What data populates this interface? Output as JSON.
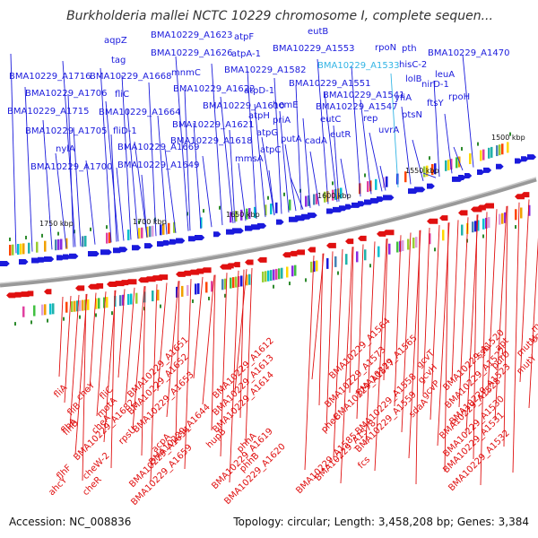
{
  "title": "Burkholderia mallei NCTC 10229 chromosome I, complete sequen...",
  "footer": {
    "accession": "Accession: NC_008836",
    "summary": "Topology: circular; Length: 3,458,208 bp; Genes: 3,384"
  },
  "colors": {
    "forward": "#1a1adc",
    "reverse": "#e01010",
    "highlight": "#33b5e5",
    "backbone": "#888888"
  },
  "ticks": [
    "1750 kbp",
    "1700 kbp",
    "1650 kbp",
    "1600 kbp",
    "1550 kbp",
    "1500 kbp"
  ],
  "forward_labels": [
    "aqpZ",
    "tag",
    "BMA10229_A1623",
    "BMA10229_A1626",
    "atpF",
    "atpA-1",
    "eutB",
    "BMA10229_A1553",
    "rpoN",
    "pth",
    "BMA10229_A1470",
    "BMA10229_A1533",
    "BMA10229_A1716",
    "BMA10229_A1668",
    "mnmC",
    "BMA10229_A1582",
    "hisC-2",
    "leuA",
    "BMA10229_A1706",
    "fliC",
    "BMA10229_A1622",
    "atpD-1",
    "BMA10229_A1551",
    "lolB",
    "nirD-1",
    "BMA10229_A1715",
    "BMA10229_A1664",
    "BMA10229_A1610",
    "hemE",
    "BMA10229_A1541",
    "yfiA",
    "rpoH",
    "atpH",
    "BMA10229_A1547",
    "ptsN",
    "ftsY",
    "BMA10229_A1705",
    "fliD-1",
    "BMA10229_A1621",
    "priA",
    "eutC",
    "rep",
    "atpG",
    "putA",
    "uvrA",
    "cadA",
    "eutR",
    "nylA",
    "BMA10229_A1669",
    "BMA10229_A1618",
    "atpC",
    "mmsA",
    "BMA10229_A1700",
    "BMA10229_A1649"
  ],
  "reverse_labels": [
    "maiA",
    "coaD",
    "mutM",
    "apt",
    "ssb",
    "purU",
    "mutY",
    "gcvT",
    "gcvH",
    "gcvP",
    "BMA10229_A1564",
    "BMA10229_A1565",
    "BMA10229_A1573",
    "BMA10229_A1577",
    "sdaA",
    "BMA10229_A1520",
    "BMA10229_A1522",
    "BMA10229_A1523",
    "BMA10229_A1528",
    "fliA",
    "cheY",
    "fliB",
    "fliC",
    "BMA10229_A1651",
    "BMA10229_A1612",
    "flhB",
    "motA",
    "BMA10229_A1652",
    "BMA10229_A1613",
    "flhA",
    "cheA",
    "BMA10229_A1653",
    "BMA10229_A1614",
    "rpsU",
    "pheC",
    "BMA10229_A1558",
    "BMA10229_A1559",
    "acpA",
    "hupB",
    "phhA",
    "BMA10229_A1682",
    "BMA10229_A1644",
    "fcs",
    "BMA10229_A1530",
    "BMA10229_A1531",
    "flhF",
    "cheW-2",
    "phhB",
    "BMA10229_A1578",
    "ahcY",
    "cheR",
    "BMA10229_A1654",
    "BMA10229_A1619",
    "BMA10229_A1585",
    "BMA10229_A1532",
    "BMA10229_A1659",
    "BMA10229_A1620"
  ]
}
